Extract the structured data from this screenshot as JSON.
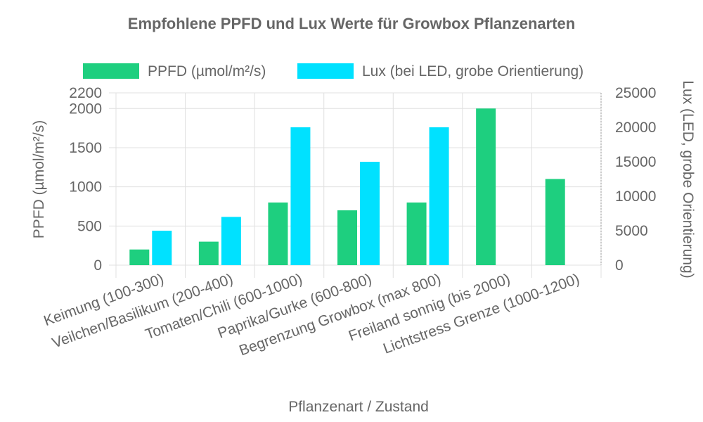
{
  "chart_data": {
    "type": "bar",
    "title": "Empfohlene PPFD und Lux Werte für Growbox Pflanzenarten",
    "xlabel": "Pflanzenart / Zustand",
    "ylabel": "PPFD (µmol/m²/s)",
    "y2label": "Lux (LED, grobe Orientierung)",
    "categories": [
      "Keimung (100-300)",
      "Veilchen/Basilikum (200-400)",
      "Tomaten/Chili (600-1000)",
      "Paprika/Gurke (600-800)",
      "Begrenzung Growbox (max 800)",
      "Freiland sonnig (bis 2000)",
      "Lichtstress Grenze (1000-1200)"
    ],
    "series": [
      {
        "name": "PPFD (µmol/m²/s)",
        "axis": "left",
        "color": "#1ecf7f",
        "values": [
          200,
          300,
          800,
          700,
          800,
          2000,
          1100
        ]
      },
      {
        "name": "Lux (bei LED, grobe Orientierung)",
        "axis": "right",
        "color": "#00e1ff",
        "values": [
          5000,
          7000,
          20000,
          15000,
          20000,
          null,
          null
        ]
      }
    ],
    "ylim": [
      0,
      2200
    ],
    "yticks": [
      "0",
      "500",
      "1000",
      "1500",
      "2000",
      "2200"
    ],
    "y2lim": [
      0,
      25000
    ],
    "y2ticks": [
      "0",
      "5000",
      "10000",
      "15000",
      "20000",
      "25000"
    ],
    "grid": true,
    "legend": "top"
  }
}
